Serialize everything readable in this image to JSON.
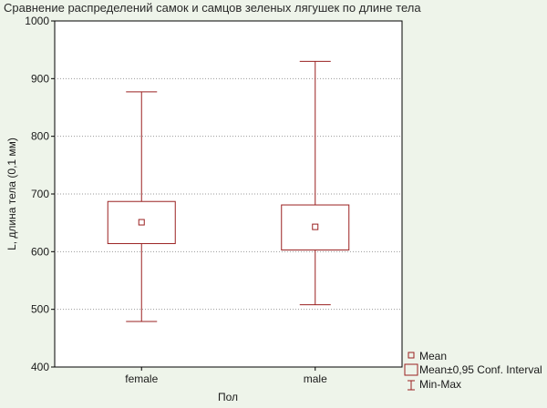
{
  "chart_data": {
    "type": "boxplot",
    "title": "Сравнение распределений самок и самцов зеленых лягушек по длине тела",
    "xlabel": "Пол",
    "ylabel": "L, длина тела (0,1 мм)",
    "ylim": [
      400,
      1000
    ],
    "yticks": [
      "400",
      "500",
      "600",
      "700",
      "800",
      "900",
      "1000"
    ],
    "grid": "horizontal dotted",
    "categories": [
      "female",
      "male"
    ],
    "series": [
      {
        "category": "female",
        "mean": 651,
        "ci_low": 614,
        "ci_high": 687,
        "min": 479,
        "max": 877
      },
      {
        "category": "male",
        "mean": 643,
        "ci_low": 603,
        "ci_high": 681,
        "min": 508,
        "max": 930
      }
    ],
    "legend": {
      "position": "bottom-right",
      "items": [
        "Mean",
        "Mean±0,95 Conf. Interval",
        "Min-Max"
      ]
    },
    "colors": {
      "series": "#9a2020",
      "background": "#eef4ea",
      "plot": "#ffffff"
    }
  }
}
